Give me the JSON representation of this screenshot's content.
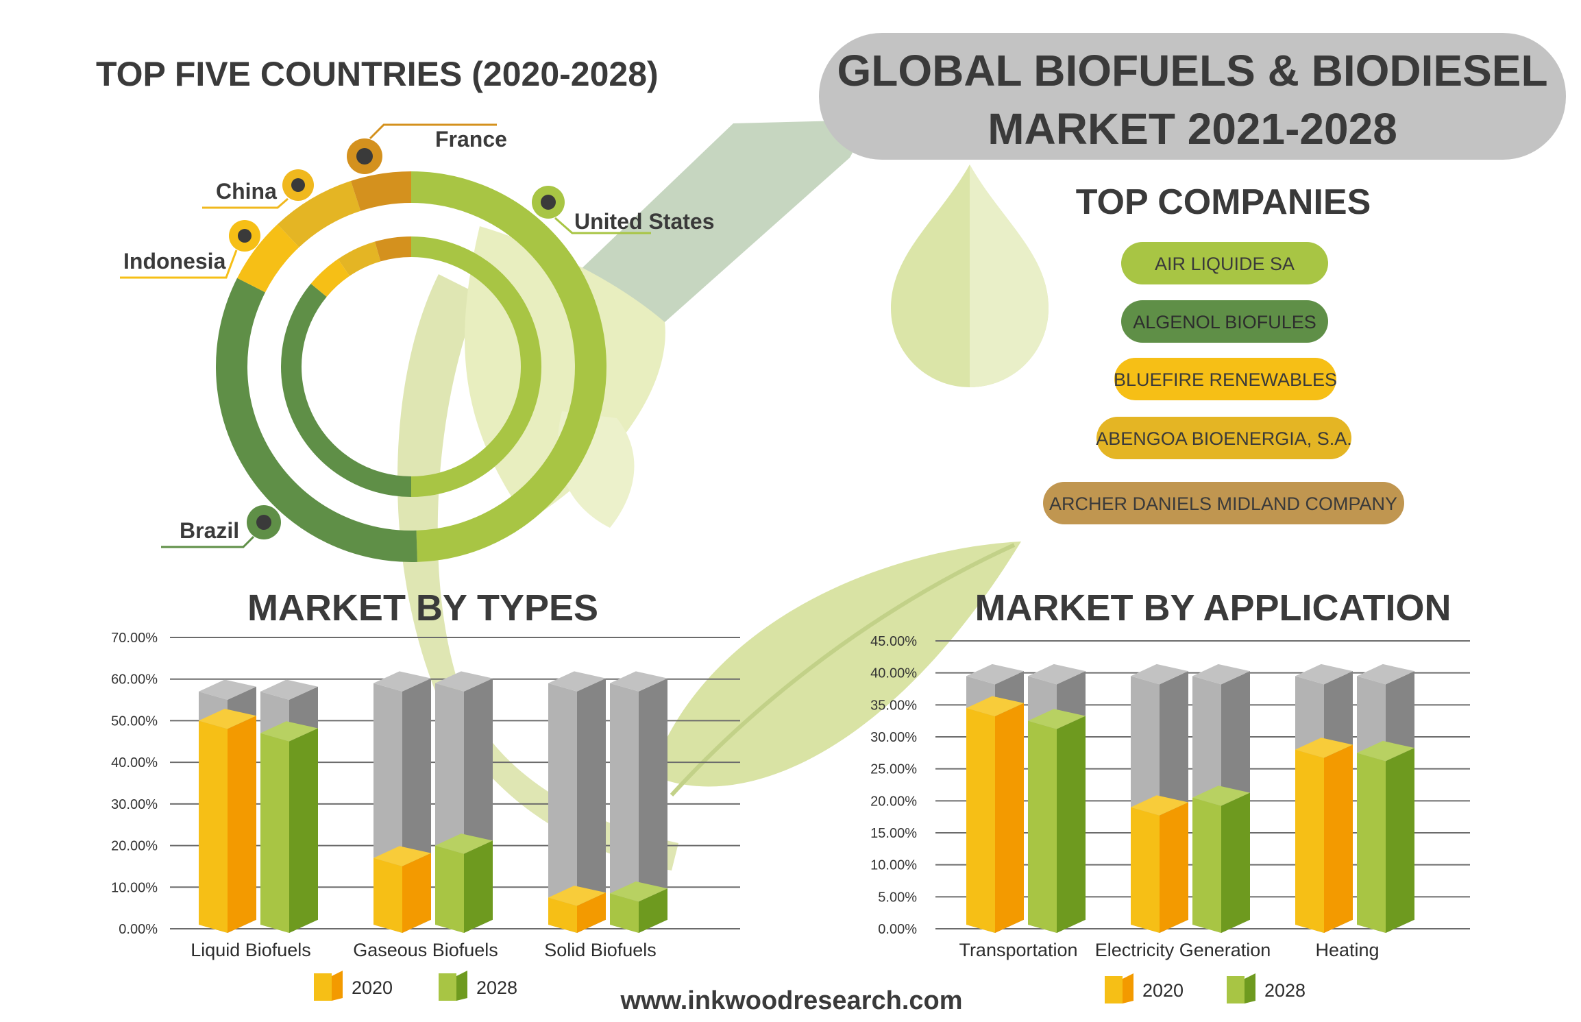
{
  "header": {
    "title_line1": "GLOBAL BIOFUELS & BIODIESEL",
    "title_line2": "MARKET 2021-2028"
  },
  "countries": {
    "title": "TOP FIVE COUNTRIES (2020-2028)",
    "labels": [
      "United States",
      "France",
      "China",
      "Indonesia",
      "Brazil"
    ]
  },
  "companies": {
    "title": "TOP COMPANIES",
    "items": [
      {
        "name": "AIR LIQUIDE SA",
        "color": "#a8c544"
      },
      {
        "name": "ALGENOL BIOFULES",
        "color": "#5f8f47"
      },
      {
        "name": "BLUEFIRE RENEWABLES",
        "color": "#f6bf16"
      },
      {
        "name": "ABENGOA BIOENERGIA, S.A.",
        "color": "#e4b524"
      },
      {
        "name": "ARCHER DANIELS MIDLAND COMPANY",
        "color": "#c09650"
      }
    ]
  },
  "footer": {
    "website": "www.inkwoodresearch.com"
  },
  "colors": {
    "series_2020": "#f6bf16",
    "series_2020_side": "#f39a00",
    "series_2028": "#a8c544",
    "series_2028_side": "#6e9a1f",
    "empty_front": "#b3b3b3",
    "empty_side": "#858585",
    "dark_green": "#5f8f47",
    "dark_orange": "#d4911e"
  },
  "chart_data": [
    {
      "type": "bar",
      "title": "MARKET BY TYPES",
      "categories": [
        "Liquid Biofuels",
        "Gaseous Biofuels",
        "Solid Biofuels"
      ],
      "series": [
        {
          "name": "2020",
          "values": [
            50.0,
            17.0,
            7.5
          ]
        },
        {
          "name": "2028",
          "values": [
            47.0,
            20.0,
            8.5
          ]
        }
      ],
      "ylim": [
        0,
        70
      ],
      "yticks": [
        "0.00%",
        "10.00%",
        "20.00%",
        "30.00%",
        "40.00%",
        "50.00%",
        "60.00%",
        "70.00%"
      ],
      "grid": true,
      "legend": "bottom"
    },
    {
      "type": "bar",
      "title": "MARKET BY APPLICATION",
      "categories": [
        "Transportation",
        "Electricity Generation",
        "Heating"
      ],
      "series": [
        {
          "name": "2020",
          "values": [
            34.5,
            19.0,
            28.0
          ]
        },
        {
          "name": "2028",
          "values": [
            32.5,
            20.5,
            27.5
          ]
        }
      ],
      "ylim": [
        0,
        45
      ],
      "yticks": [
        "0.00%",
        "5.00%",
        "10.00%",
        "15.00%",
        "20.00%",
        "25.00%",
        "30.00%",
        "35.00%",
        "40.00%",
        "45.00%"
      ],
      "grid": true,
      "legend": "bottom"
    },
    {
      "type": "pie",
      "title": "TOP FIVE COUNTRIES (2020-2028)",
      "categories": [
        "United States",
        "Brazil",
        "Indonesia",
        "China",
        "France"
      ],
      "series": [
        {
          "name": "outer ring",
          "values": [
            49.5,
            33.0,
            5.5,
            7.0,
            5.0
          ]
        },
        {
          "name": "inner ring",
          "values": [
            50.0,
            36.0,
            4.5,
            5.0,
            4.5
          ]
        }
      ]
    }
  ]
}
